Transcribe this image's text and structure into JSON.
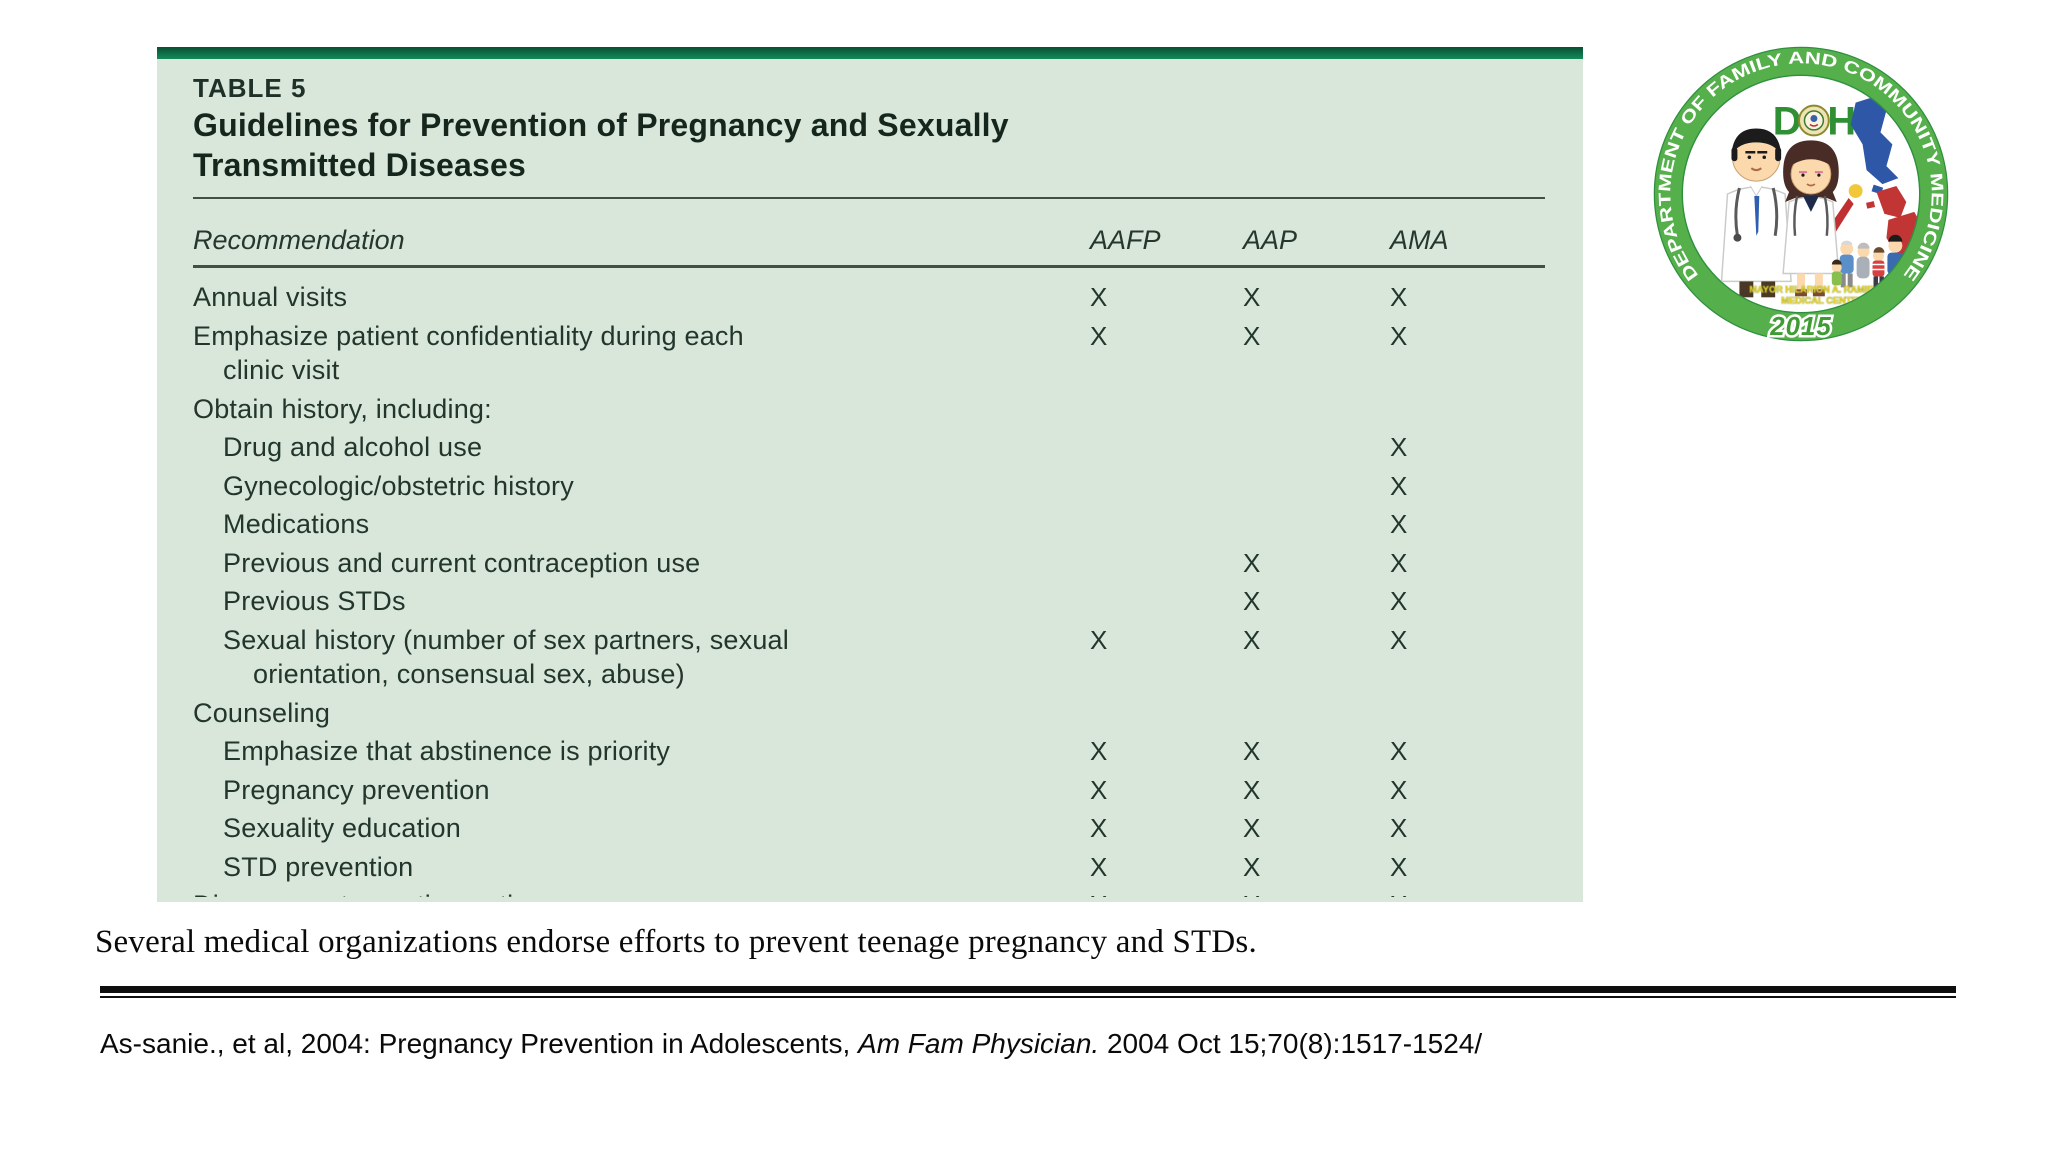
{
  "table": {
    "eyebrow": "TABLE 5",
    "title_line1": "Guidelines for Prevention of Pregnancy and Sexually",
    "title_line2": "Transmitted Diseases",
    "columns": {
      "recommendation": "Recommendation",
      "org1": "AAFP",
      "org2": "AAP",
      "org3": "AMA"
    },
    "mark_char": "X",
    "rows": [
      {
        "label": "Annual visits",
        "label2": "",
        "indent": 0,
        "clipped": false,
        "aafp": true,
        "aap": true,
        "ama": true
      },
      {
        "label": "Emphasize patient confidentiality during each",
        "label2": "clinic visit",
        "indent": 0,
        "clipped": false,
        "aafp": true,
        "aap": true,
        "ama": true
      },
      {
        "label": "Obtain history, including:",
        "label2": "",
        "indent": 0,
        "clipped": false,
        "aafp": false,
        "aap": false,
        "ama": false
      },
      {
        "label": "Drug and alcohol use",
        "label2": "",
        "indent": 1,
        "clipped": false,
        "aafp": false,
        "aap": false,
        "ama": true
      },
      {
        "label": "Gynecologic/obstetric history",
        "label2": "",
        "indent": 1,
        "clipped": false,
        "aafp": false,
        "aap": false,
        "ama": true
      },
      {
        "label": "Medications",
        "label2": "",
        "indent": 1,
        "clipped": false,
        "aafp": false,
        "aap": false,
        "ama": true
      },
      {
        "label": "Previous and current contraception use",
        "label2": "",
        "indent": 1,
        "clipped": false,
        "aafp": false,
        "aap": true,
        "ama": true
      },
      {
        "label": "Previous STDs",
        "label2": "",
        "indent": 1,
        "clipped": false,
        "aafp": false,
        "aap": true,
        "ama": true
      },
      {
        "label": "Sexual history (number of sex partners, sexual",
        "label2": "orientation, consensual sex, abuse)",
        "indent": 1,
        "clipped": false,
        "aafp": true,
        "aap": true,
        "ama": true
      },
      {
        "label": "Counseling",
        "label2": "",
        "indent": 0,
        "clipped": false,
        "aafp": false,
        "aap": false,
        "ama": false
      },
      {
        "label": "Emphasize that abstinence is priority",
        "label2": "",
        "indent": 1,
        "clipped": false,
        "aafp": true,
        "aap": true,
        "ama": true
      },
      {
        "label": "Pregnancy prevention",
        "label2": "",
        "indent": 1,
        "clipped": false,
        "aafp": true,
        "aap": true,
        "ama": true
      },
      {
        "label": "Sexuality education",
        "label2": "",
        "indent": 1,
        "clipped": false,
        "aafp": true,
        "aap": true,
        "ama": true
      },
      {
        "label": "STD prevention",
        "label2": "",
        "indent": 1,
        "clipped": false,
        "aafp": true,
        "aap": true,
        "ama": true
      },
      {
        "label": "Discuss contraception options",
        "label2": "",
        "indent": 0,
        "clipped": true,
        "aafp": true,
        "aap": true,
        "ama": true
      }
    ],
    "colors": {
      "panel_bg": "#d9e6da",
      "accent_bar": "#0e7a4f",
      "text": "#22362b"
    }
  },
  "caption": {
    "text": "Several medical organizations endorse efforts to prevent teenage pregnancy and STDs."
  },
  "citation": {
    "prefix": "As-sanie., et al, 2004: Pregnancy Prevention in Adolescents, ",
    "journal": "Am Fam Physician.",
    "suffix": " 2004 Oct 15;70(8):1517-1524/"
  },
  "logo": {
    "ring_text": "DEPARTMENT OF FAMILY AND COMMUNITY MEDICINE",
    "doh_d": "D",
    "doh_h": "H",
    "year": "2015",
    "facility_line1": "MAYOR HILARION A. RAMIRO SR",
    "facility_line2": "MEDICAL CENTER",
    "colors": {
      "ring": "#55b04b",
      "ring_edge": "#2e8f3e",
      "year": "#3f9c35",
      "facility": "#f5d82a"
    }
  }
}
